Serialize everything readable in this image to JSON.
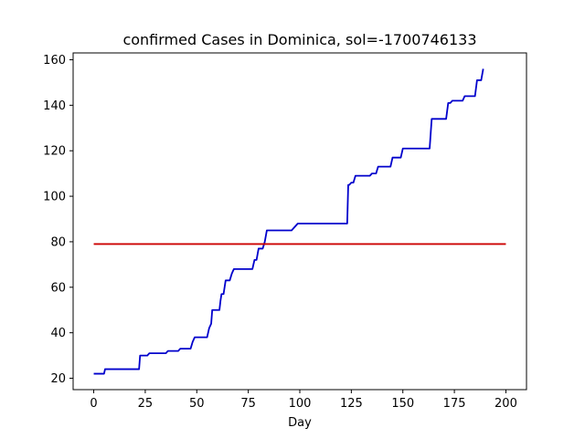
{
  "chart_data": {
    "type": "line",
    "title": "confirmed Cases in Dominica, sol=-1700746133",
    "xlabel": "Day",
    "ylabel": "",
    "xlim": [
      -10,
      210
    ],
    "ylim": [
      15,
      163
    ],
    "xticks": [
      0,
      25,
      50,
      75,
      100,
      125,
      150,
      175,
      200
    ],
    "yticks": [
      20,
      40,
      60,
      80,
      100,
      120,
      140,
      160
    ],
    "grid": false,
    "colors": {
      "series": "#0000cc",
      "threshold": "#cc0000"
    },
    "series": [
      {
        "x": [
          0,
          5,
          5.5,
          22,
          22.5,
          25,
          26,
          27,
          35,
          36,
          41,
          42,
          47,
          48,
          49,
          50,
          55,
          56,
          57,
          57.5,
          61,
          61.5,
          62,
          63,
          64,
          66,
          67,
          68,
          77,
          77.5,
          78,
          79,
          80,
          82,
          83,
          84,
          96,
          97,
          98,
          99,
          123,
          123.5,
          124,
          125,
          126,
          127,
          134,
          135,
          137,
          138,
          144,
          145,
          149,
          150,
          163,
          164,
          171,
          172,
          173,
          174,
          179,
          180,
          185,
          186,
          188,
          189
        ],
        "y": [
          22,
          22,
          24,
          24,
          30,
          30,
          30,
          31,
          31,
          32,
          32,
          33,
          33,
          36,
          38,
          38,
          38,
          42,
          44,
          50,
          50,
          54,
          57,
          57,
          63,
          63,
          66,
          68,
          68,
          70,
          72,
          72,
          77,
          77,
          80,
          85,
          85,
          86,
          87,
          88,
          88,
          105,
          105,
          106,
          106,
          109,
          109,
          110,
          110,
          113,
          113,
          117,
          117,
          121,
          121,
          134,
          134,
          141,
          141,
          142,
          142,
          144,
          144,
          151,
          151,
          156
        ]
      },
      {
        "x": [
          0,
          200
        ],
        "y": [
          79,
          79
        ]
      }
    ]
  }
}
